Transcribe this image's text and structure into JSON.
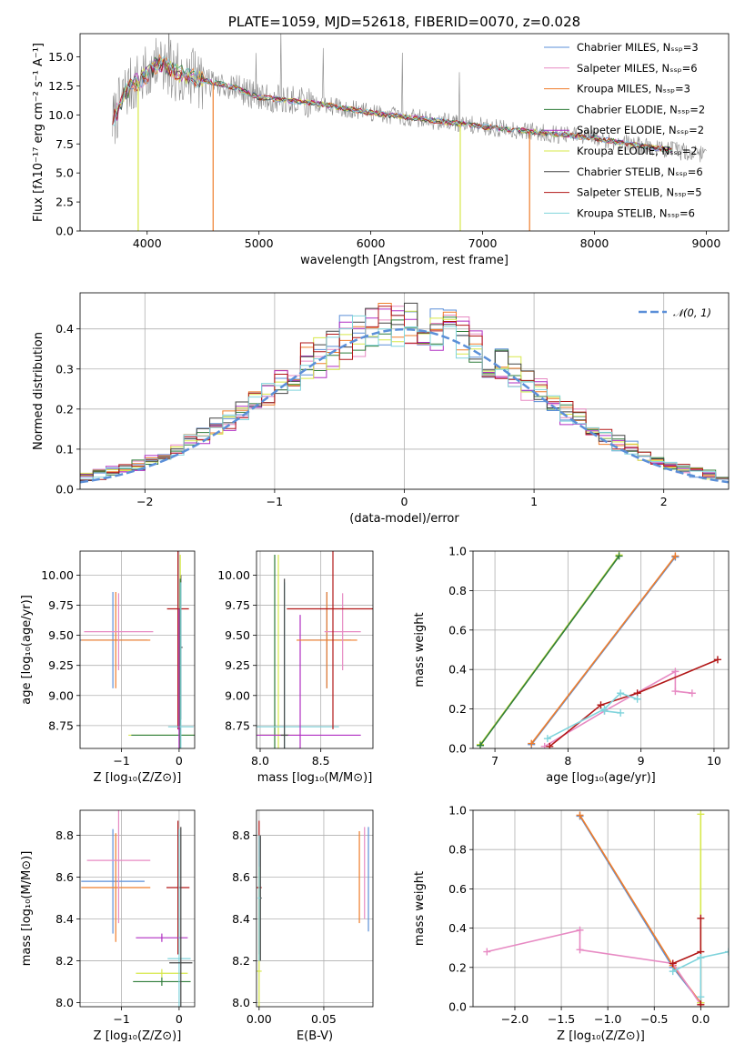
{
  "colors": {
    "Chabrier MILES": "#5b8fd8",
    "Salpeter MILES": "#e78ac3",
    "Kroupa MILES": "#ef7d2b",
    "Chabrier ELODIE": "#2f7d3a",
    "Salpeter ELODIE": "#b02ec2",
    "Kroupa ELODIE": "#d7e84a",
    "Chabrier STELIB": "#444444",
    "Salpeter STELIB": "#b21818",
    "Kroupa STELIB": "#80d4dc",
    "obs": "#888888",
    "normal": "#5b8fd8"
  },
  "chart_data": [
    {
      "id": "spectrum",
      "type": "line",
      "title": "PLATE=1059, MJD=52618, FIBERID=0070, z=0.028",
      "xlabel": "wavelength [Angstrom, rest frame]",
      "ylabel": "Flux [fλ10⁻¹⁷ erg cm⁻² s⁻¹ A⁻¹]",
      "xlim": [
        3400,
        9200
      ],
      "ylim": [
        0,
        17
      ],
      "xticks": [
        "4000",
        "5000",
        "6000",
        "7000",
        "8000",
        "9000"
      ],
      "yticks": [
        "0.0",
        "2.5",
        "5.0",
        "7.5",
        "10.0",
        "12.5",
        "15.0"
      ],
      "grid": false,
      "legend_position": "top-right",
      "legend": [
        "Chabrier MILES, Nₛₛₚ=3",
        "Salpeter MILES, Nₛₛₚ=6",
        "Kroupa MILES, Nₛₛₚ=3",
        "Chabrier ELODIE, Nₛₛₚ=2",
        "Salpeter ELODIE, Nₛₛₚ=2",
        "Kroupa ELODIE, Nₛₛₚ=2",
        "Chabrier STELIB, Nₛₛₚ=6",
        "Salpeter STELIB, Nₛₛₚ=5",
        "Kroupa STELIB, Nₛₛₚ=6"
      ],
      "continuum": {
        "wavelength": [
          3700,
          3800,
          3900,
          4000,
          4100,
          4300,
          4500,
          4800,
          5000,
          5200,
          5500,
          6000,
          6500,
          7000,
          7500,
          8000,
          8500,
          9000
        ],
        "flux": [
          9.5,
          12.0,
          12.8,
          13.4,
          14.5,
          13.5,
          13.0,
          12.3,
          11.5,
          11.3,
          11.0,
          10.2,
          9.6,
          9.0,
          8.5,
          8.0,
          7.2,
          6.6
        ]
      },
      "dips": [
        {
          "wavelength": 3920,
          "to": 0
        },
        {
          "wavelength": 4590,
          "to": 0
        },
        {
          "wavelength": 6800,
          "to": 0
        },
        {
          "wavelength": 7420,
          "to": 0
        }
      ]
    },
    {
      "id": "residuals",
      "type": "line",
      "xlabel": "(data-model)/error",
      "ylabel": "Normed distribution",
      "xlim": [
        -2.5,
        2.5
      ],
      "ylim": [
        0,
        0.49
      ],
      "xticks": [
        "−2",
        "−1",
        "0",
        "1",
        "2"
      ],
      "yticks": [
        "0.0",
        "0.1",
        "0.2",
        "0.3",
        "0.4"
      ],
      "grid": true,
      "legend_position": "top-right",
      "legend": [
        "𝒩(0, 1)"
      ],
      "bin_width": 0.1,
      "normal_curve": {
        "mean": 0,
        "sigma": 1
      }
    },
    {
      "id": "age-vs-Z",
      "type": "scatter",
      "xlabel": "Z [log₁₀(Z/Z⊙)]",
      "ylabel": "age  [log₁₀(age/yr)]",
      "xlim": [
        -1.72,
        0.27
      ],
      "ylim": [
        8.56,
        10.2
      ],
      "xticks": [
        "−1",
        "0"
      ],
      "yticks": [
        "8.75",
        "9.00",
        "9.25",
        "9.50",
        "9.75",
        "10.00"
      ],
      "grid": true
    },
    {
      "id": "age-vs-mass",
      "type": "scatter",
      "xlabel": "mass [log₁₀(M/M⊙)]",
      "xlim": [
        7.97,
        8.93
      ],
      "ylim": [
        8.56,
        10.2
      ],
      "xticks": [
        "8.0",
        "8.5"
      ],
      "yticks": [
        "8.75",
        "9.00",
        "9.25",
        "9.50",
        "9.75",
        "10.00"
      ],
      "grid": true
    },
    {
      "id": "weight-vs-age",
      "type": "line",
      "xlabel": "age  [log₁₀(age/yr)]",
      "ylabel": "mass weight",
      "xlim": [
        6.7,
        10.2
      ],
      "ylim": [
        0,
        1.0
      ],
      "xticks": [
        "7",
        "8",
        "9",
        "10"
      ],
      "yticks": [
        "0.0",
        "0.2",
        "0.4",
        "0.6",
        "0.8",
        "1.0"
      ],
      "grid": true,
      "series": [
        {
          "name": "Kroupa ELODIE",
          "x": [
            6.8,
            8.7
          ],
          "y": [
            0.02,
            0.98
          ]
        },
        {
          "name": "Chabrier ELODIE",
          "x": [
            6.8,
            8.7
          ],
          "y": [
            0.015,
            0.975
          ]
        },
        {
          "name": "Chabrier MILES",
          "x": [
            7.5,
            9.47
          ],
          "y": [
            0.02,
            0.97
          ]
        },
        {
          "name": "Kroupa MILES",
          "x": [
            7.5,
            9.47
          ],
          "y": [
            0.025,
            0.975
          ]
        },
        {
          "name": "Salpeter MILES",
          "x": [
            7.68,
            8.5,
            9.47,
            9.47,
            9.7
          ],
          "y": [
            0.01,
            0.19,
            0.39,
            0.29,
            0.28
          ]
        },
        {
          "name": "Salpeter STELIB",
          "x": [
            7.75,
            8.45,
            8.95,
            10.05
          ],
          "y": [
            0.01,
            0.22,
            0.28,
            0.45
          ]
        },
        {
          "name": "Kroupa STELIB",
          "x": [
            7.72,
            8.5,
            8.72,
            8.95
          ],
          "y": [
            0.05,
            0.2,
            0.28,
            0.25
          ]
        },
        {
          "name": "Kroupa STELIB (b)",
          "x": [
            8.5,
            8.72
          ],
          "y": [
            0.19,
            0.18
          ]
        }
      ]
    },
    {
      "id": "mass-vs-Z",
      "type": "scatter",
      "xlabel": "Z [log₁₀(Z/Z⊙)]",
      "ylabel": "mass [log₁₀(M/M⊙)]",
      "xlim": [
        -1.72,
        0.27
      ],
      "ylim": [
        7.98,
        8.92
      ],
      "xticks": [
        "−1",
        "0"
      ],
      "yticks": [
        "8.0",
        "8.2",
        "8.4",
        "8.6",
        "8.8"
      ],
      "grid": true
    },
    {
      "id": "mass-vs-EBV",
      "type": "scatter",
      "xlabel": "E(B-V)",
      "xlim": [
        -0.002,
        0.088
      ],
      "ylim": [
        7.98,
        8.92
      ],
      "xticks": [
        "0.00",
        "0.05"
      ],
      "yticks": [
        "8.0",
        "8.2",
        "8.4",
        "8.6",
        "8.8"
      ],
      "grid": true
    },
    {
      "id": "weight-vs-Z",
      "type": "line",
      "xlabel": "Z [log₁₀(Z/Z⊙)]",
      "ylabel": "mass weight",
      "xlim": [
        -2.45,
        0.3
      ],
      "ylim": [
        0,
        1.0
      ],
      "xticks": [
        "−2.0",
        "−1.5",
        "−1.0",
        "−0.5",
        "0.0"
      ],
      "yticks": [
        "0.0",
        "0.2",
        "0.4",
        "0.6",
        "0.8",
        "1.0"
      ],
      "grid": true,
      "series": [
        {
          "name": "Chabrier MILES",
          "x": [
            -1.3,
            -0.3,
            0.0
          ],
          "y": [
            0.97,
            0.2,
            0.02
          ]
        },
        {
          "name": "Kroupa MILES",
          "x": [
            -1.3,
            -0.3,
            0.0
          ],
          "y": [
            0.975,
            0.21,
            0.02
          ]
        },
        {
          "name": "Salpeter MILES",
          "x": [
            -2.3,
            -1.3,
            -1.3,
            -0.3,
            0.0
          ],
          "y": [
            0.28,
            0.39,
            0.29,
            0.22,
            0.01
          ]
        },
        {
          "name": "Kroupa ELODIE",
          "x": [
            0.0,
            0.0
          ],
          "y": [
            0.02,
            0.98
          ]
        },
        {
          "name": "Salpeter STELIB",
          "x": [
            0.0,
            0.0,
            0.0,
            -0.3
          ],
          "y": [
            0.01,
            0.45,
            0.28,
            0.22
          ]
        },
        {
          "name": "Kroupa STELIB",
          "x": [
            -0.3,
            0.0,
            0.3
          ],
          "y": [
            0.18,
            0.25,
            0.28
          ]
        },
        {
          "name": "Kroupa STELIB (b)",
          "x": [
            0.0,
            0.0
          ],
          "y": [
            0.05,
            0.25
          ]
        }
      ]
    }
  ]
}
